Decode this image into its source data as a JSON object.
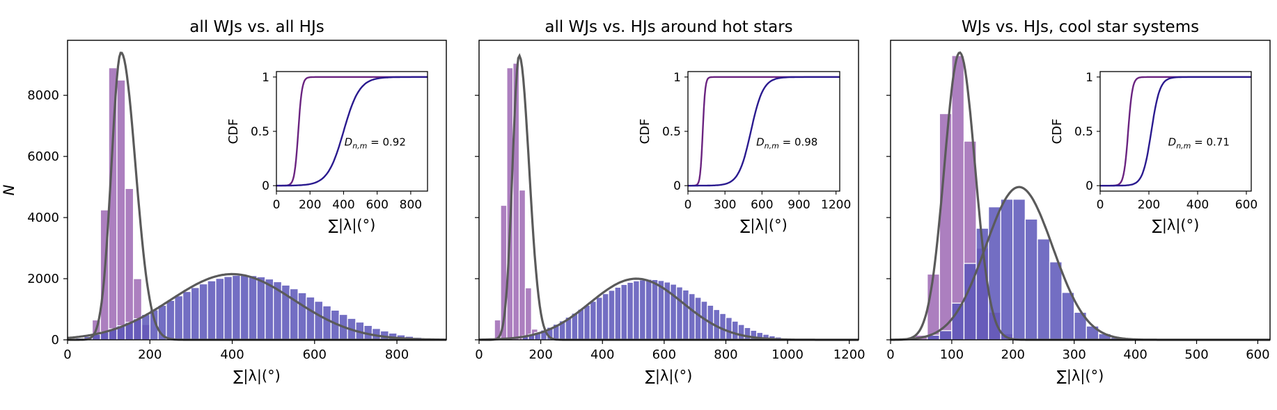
{
  "chart_data": [
    {
      "type": "bar",
      "title": "all WJs vs. all HJs",
      "xlabel": "∑|λ|(°)",
      "ylabel": "N",
      "xlim": [
        0,
        920
      ],
      "ylim": [
        0,
        9800
      ],
      "xticks": [
        0,
        200,
        400,
        600,
        800
      ],
      "yticks": [
        0,
        2000,
        4000,
        6000,
        8000
      ],
      "grid": false,
      "series": [
        {
          "color": "#9e68b4",
          "bin_width": 20,
          "bin_centers": [
            70,
            90,
            110,
            130,
            150,
            170,
            190
          ],
          "values": [
            650,
            4250,
            8900,
            8500,
            4950,
            2000,
            500
          ],
          "fit": {
            "shape": "skew-normal",
            "peak_x": 130,
            "peak_y": 9400
          }
        },
        {
          "color": "#5b55b8",
          "bin_width": 20,
          "bin_centers": [
            30,
            50,
            70,
            90,
            110,
            130,
            150,
            170,
            190,
            210,
            230,
            250,
            270,
            290,
            310,
            330,
            350,
            370,
            390,
            410,
            430,
            450,
            470,
            490,
            510,
            530,
            550,
            570,
            590,
            610,
            630,
            650,
            670,
            690,
            710,
            730,
            750,
            770,
            790,
            810,
            830,
            850,
            870,
            890,
            910
          ],
          "values": [
            60,
            110,
            180,
            260,
            360,
            460,
            570,
            690,
            830,
            980,
            1130,
            1290,
            1440,
            1580,
            1710,
            1830,
            1930,
            2010,
            2070,
            2110,
            2120,
            2100,
            2060,
            1990,
            1900,
            1790,
            1670,
            1540,
            1400,
            1260,
            1110,
            970,
            830,
            700,
            580,
            470,
            370,
            290,
            220,
            160,
            115,
            80,
            55,
            35,
            20
          ],
          "fit": {
            "shape": "gaussian",
            "peak_x": 400,
            "peak_y": 2150
          }
        }
      ],
      "inset": {
        "ylabel": "CDF",
        "xlabel": "∑|λ|(°)",
        "xlim": [
          0,
          900
        ],
        "ylim": [
          -0.05,
          1.05
        ],
        "xticks": [
          0,
          200,
          400,
          600,
          800
        ],
        "yticks": [
          0.0,
          0.5,
          1.0
        ],
        "annotation": "0.92",
        "curves": [
          {
            "color": "#6a2380",
            "center": 130,
            "width": 45
          },
          {
            "color": "#2a1a8f",
            "center": 400,
            "width": 190
          }
        ]
      }
    },
    {
      "type": "bar",
      "title": "all WJs vs. HJs around hot stars",
      "xlabel": "∑|λ|(°)",
      "ylabel": "",
      "xlim": [
        0,
        1230
      ],
      "ylim": [
        0,
        9800
      ],
      "xticks": [
        0,
        200,
        400,
        600,
        800,
        1000,
        1200
      ],
      "yticks": [
        0,
        2000,
        4000,
        6000,
        8000
      ],
      "grid": false,
      "series": [
        {
          "color": "#9e68b4",
          "bin_width": 20,
          "bin_centers": [
            60,
            80,
            100,
            120,
            140,
            160,
            180
          ],
          "values": [
            650,
            4400,
            8900,
            9050,
            4900,
            1700,
            350
          ],
          "fit": {
            "shape": "skew-normal",
            "peak_x": 130,
            "peak_y": 9300
          }
        },
        {
          "color": "#5b55b8",
          "bin_width": 20,
          "bin_centers": [
            150,
            170,
            190,
            210,
            230,
            250,
            270,
            290,
            310,
            330,
            350,
            370,
            390,
            410,
            430,
            450,
            470,
            490,
            510,
            530,
            550,
            570,
            590,
            610,
            630,
            650,
            670,
            690,
            710,
            730,
            750,
            770,
            790,
            810,
            830,
            850,
            870,
            890,
            910,
            930,
            950,
            970,
            990,
            1010,
            1030
          ],
          "values": [
            130,
            180,
            240,
            320,
            410,
            510,
            620,
            740,
            870,
            1000,
            1130,
            1260,
            1390,
            1510,
            1620,
            1720,
            1810,
            1880,
            1930,
            1960,
            1980,
            1970,
            1940,
            1890,
            1820,
            1730,
            1630,
            1510,
            1390,
            1260,
            1130,
            990,
            860,
            730,
            610,
            500,
            400,
            310,
            240,
            180,
            130,
            90,
            60,
            40,
            25
          ],
          "fit": {
            "shape": "gaussian",
            "peak_x": 510,
            "peak_y": 2000
          }
        }
      ],
      "inset": {
        "ylabel": "CDF",
        "xlabel": "∑|λ|(°)",
        "xlim": [
          0,
          1230
        ],
        "ylim": [
          -0.05,
          1.05
        ],
        "xticks": [
          0,
          300,
          600,
          900,
          1200
        ],
        "yticks": [
          0.0,
          0.5,
          1.0
        ],
        "annotation": "0.98",
        "curves": [
          {
            "color": "#6a2380",
            "center": 120,
            "width": 40
          },
          {
            "color": "#2a1a8f",
            "center": 510,
            "width": 200
          }
        ]
      }
    },
    {
      "type": "bar",
      "title": "WJs vs. HJs, cool star systems",
      "xlabel": "∑|λ|(°)",
      "ylabel": "",
      "xlim": [
        0,
        620
      ],
      "ylim": [
        0,
        9800
      ],
      "xticks": [
        0,
        100,
        200,
        300,
        400,
        500,
        600
      ],
      "yticks": [
        0,
        2000,
        4000,
        6000,
        8000
      ],
      "grid": false,
      "series": [
        {
          "color": "#9e68b4",
          "bin_width": 20,
          "bin_centers": [
            50,
            70,
            90,
            110,
            130,
            150,
            170,
            190
          ],
          "values": [
            150,
            2150,
            7400,
            9300,
            6500,
            3000,
            900,
            200
          ],
          "fit": {
            "shape": "gaussian",
            "peak_x": 113,
            "peak_y": 9400
          }
        },
        {
          "color": "#5b55b8",
          "bin_width": 20,
          "bin_centers": [
            70,
            90,
            110,
            130,
            150,
            170,
            190,
            210,
            230,
            250,
            270,
            290,
            310,
            330,
            350,
            370
          ],
          "values": [
            150,
            300,
            1200,
            2500,
            3650,
            4350,
            4600,
            4600,
            3950,
            3300,
            2550,
            1550,
            900,
            450,
            200,
            80
          ],
          "fit": {
            "shape": "gaussian",
            "peak_x": 210,
            "peak_y": 5000
          }
        }
      ],
      "inset": {
        "ylabel": "CDF",
        "xlabel": "∑|λ|(°)",
        "xlim": [
          0,
          620
        ],
        "ylim": [
          -0.05,
          1.05
        ],
        "xticks": [
          0,
          200,
          400,
          600
        ],
        "yticks": [
          0.0,
          0.5,
          1.0
        ],
        "annotation": "0.71",
        "curves": [
          {
            "color": "#6a2380",
            "center": 115,
            "width": 35
          },
          {
            "color": "#2a1a8f",
            "center": 210,
            "width": 70
          }
        ]
      }
    }
  ]
}
